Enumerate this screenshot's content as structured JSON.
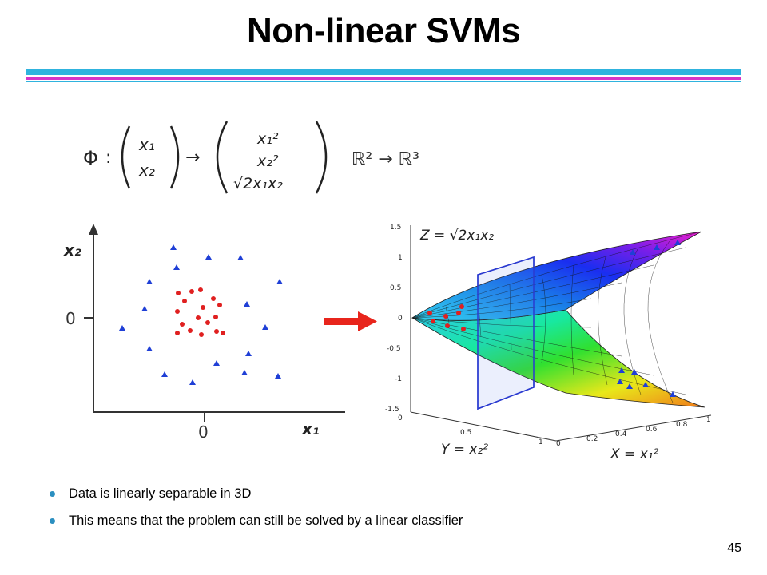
{
  "slide": {
    "title": "Non-linear SVMs",
    "page_number": "45",
    "colors": {
      "rule_cyan": "#2fb3de",
      "rule_magenta": "#d633c8",
      "bullet": "#2b8fc0",
      "arrow": "#e8251c"
    }
  },
  "formula": {
    "phi": "Φ",
    "colon": ":",
    "input_top": "x₁",
    "input_bottom": "x₂",
    "maps_to": "→",
    "out_1": "x₁²",
    "out_2": "x₂²",
    "out_3": "√2x₁x₂",
    "space": "ℝ² → ℝ³"
  },
  "left_plot": {
    "y_label": "x₂",
    "x_label": "x₁",
    "y_zero": "0",
    "x_zero": "0",
    "colors": {
      "triangle": "#1f3fd6",
      "dot": "#e02020"
    }
  },
  "right_plot": {
    "z_label": "Z = √2x₁x₂",
    "y_label": "Y = x₂²",
    "x_label": "X = x₁²",
    "z_ticks": [
      "1.5",
      "1",
      "0.5",
      "0",
      "-0.5",
      "-1",
      "-1.5"
    ],
    "y_ticks": [
      "0",
      "0.5",
      "1"
    ],
    "x_ticks": [
      "0",
      "0.2",
      "0.4",
      "0.6",
      "0.8",
      "1"
    ]
  },
  "bullets": [
    "Data is linearly separable in 3D",
    "This means that the problem can still be solved by a linear classifier"
  ]
}
